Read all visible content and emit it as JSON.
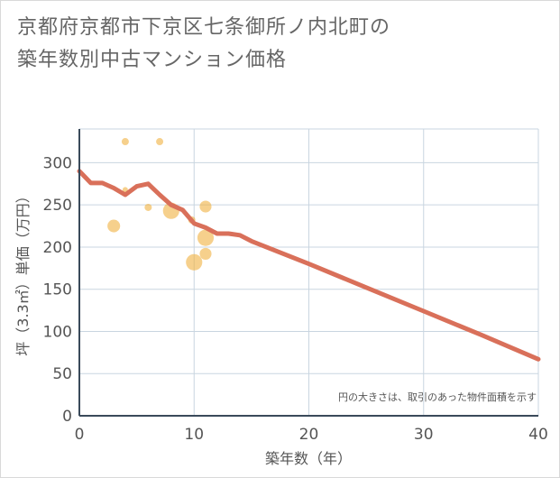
{
  "page": {
    "title_line1": "京都府京都市下京区七条御所ノ内北町の",
    "title_line2": "築年数別中古マンション価格"
  },
  "chart_data": {
    "type": "scatter",
    "title": "京都府京都市下京区七条御所ノ内北町の築年数別中古マンション価格",
    "xlabel": "築年数（年）",
    "ylabel": "坪（3.3㎡）単価（万円）",
    "xlim": [
      0,
      40
    ],
    "ylim": [
      0,
      340
    ],
    "xticks": [
      0,
      10,
      20,
      30,
      40
    ],
    "yticks": [
      0,
      50,
      100,
      150,
      200,
      250,
      300
    ],
    "grid": true,
    "annotation": "円の大きさは、取引のあった物件面積を示す",
    "colors": {
      "bubble": "#f0b040",
      "trend": "#d9705a",
      "grid": "#c9d5e0",
      "axis": "#3a4a5a"
    },
    "bubbles": [
      {
        "x": 4,
        "y": 325,
        "size": 1
      },
      {
        "x": 7,
        "y": 325,
        "size": 1
      },
      {
        "x": 4,
        "y": 268,
        "size": 0.5
      },
      {
        "x": 6,
        "y": 247,
        "size": 1
      },
      {
        "x": 3,
        "y": 225,
        "size": 3.5
      },
      {
        "x": 8,
        "y": 243,
        "size": 6
      },
      {
        "x": 9.8,
        "y": 232,
        "size": 1
      },
      {
        "x": 11,
        "y": 248,
        "size": 3
      },
      {
        "x": 11,
        "y": 211,
        "size": 6
      },
      {
        "x": 11,
        "y": 192,
        "size": 3
      },
      {
        "x": 10,
        "y": 182,
        "size": 6
      }
    ],
    "trend_line": {
      "x": [
        0,
        1,
        2,
        3,
        4,
        5,
        6,
        7,
        8,
        9,
        10,
        11,
        12,
        13,
        14,
        15,
        20,
        25,
        30,
        35,
        40
      ],
      "y": [
        290,
        276,
        276,
        270,
        262,
        272,
        275,
        262,
        250,
        244,
        228,
        223,
        216,
        216,
        214,
        207,
        180,
        152,
        124,
        96,
        67
      ]
    }
  }
}
